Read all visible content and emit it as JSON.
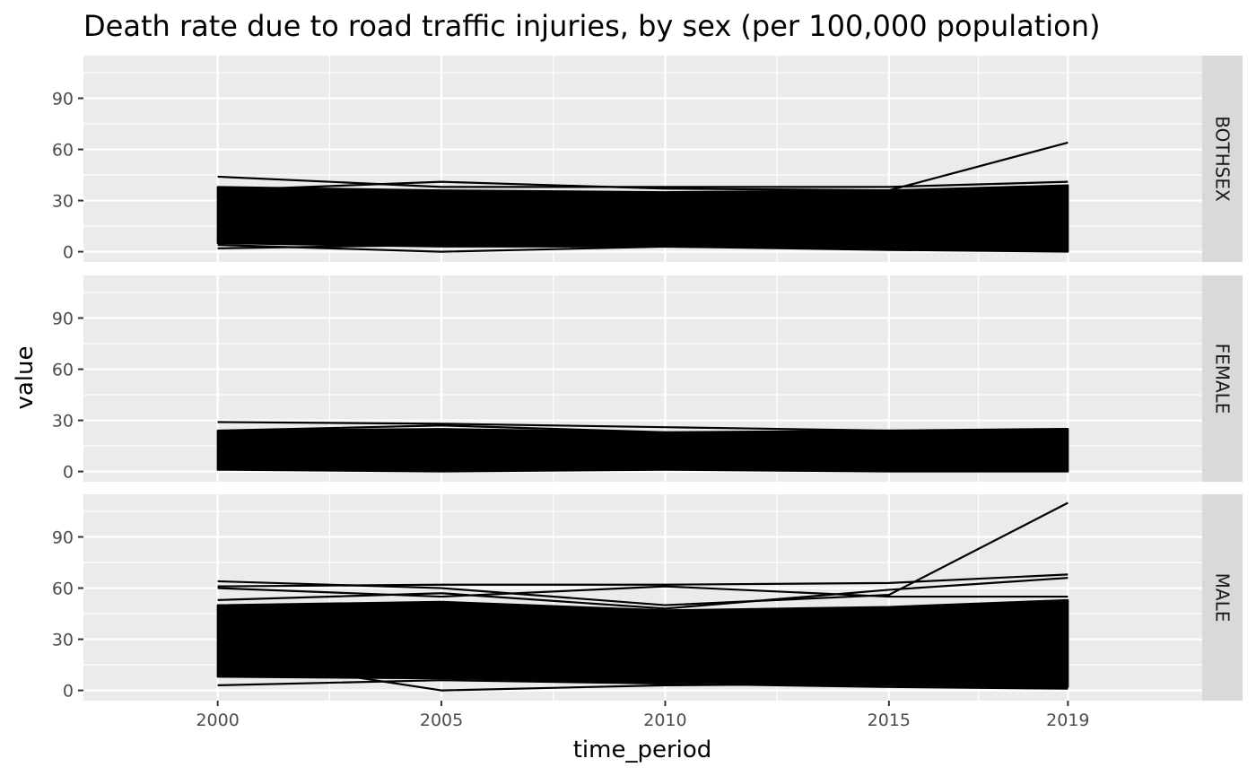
{
  "chart_data": {
    "type": "line",
    "title": "Death rate due to road traffic injuries, by sex (per 100,000 population)",
    "xlabel": "time_period",
    "ylabel": "value",
    "x_ticks": [
      2000,
      2005,
      2010,
      2015,
      2019
    ],
    "y_ticks": [
      0,
      30,
      60,
      90
    ],
    "xlim": [
      1997,
      2022
    ],
    "ylim": [
      -6,
      115
    ],
    "grid": true,
    "facets": [
      {
        "label": "BOTHSEX",
        "band_upper": [
          [
            2000,
            38
          ],
          [
            2005,
            36
          ],
          [
            2010,
            35
          ],
          [
            2015,
            36
          ],
          [
            2019,
            39
          ]
        ],
        "band_lower": [
          [
            2000,
            5
          ],
          [
            2005,
            3
          ],
          [
            2010,
            3
          ],
          [
            2015,
            1
          ],
          [
            2019,
            0
          ]
        ],
        "series": [
          {
            "x": [
              2000,
              2005,
              2010,
              2015,
              2019
            ],
            "y": [
              44,
              38,
              38,
              38,
              41
            ]
          },
          {
            "x": [
              2000,
              2005,
              2010,
              2015,
              2019
            ],
            "y": [
              36,
              41,
              37,
              36,
              64
            ]
          },
          {
            "x": [
              2000,
              2005,
              2010,
              2015,
              2019
            ],
            "y": [
              2,
              4,
              3,
              2,
              1
            ]
          },
          {
            "x": [
              2000,
              2005,
              2010,
              2015,
              2019
            ],
            "y": [
              4,
              0,
              3,
              2,
              1
            ]
          }
        ]
      },
      {
        "label": "FEMALE",
        "band_upper": [
          [
            2000,
            24
          ],
          [
            2005,
            25
          ],
          [
            2010,
            23
          ],
          [
            2015,
            23
          ],
          [
            2019,
            25
          ]
        ],
        "band_lower": [
          [
            2000,
            1
          ],
          [
            2005,
            0
          ],
          [
            2010,
            1
          ],
          [
            2015,
            0
          ],
          [
            2019,
            0
          ]
        ],
        "series": [
          {
            "x": [
              2000,
              2005,
              2010,
              2015,
              2019
            ],
            "y": [
              29,
              28,
              26,
              24,
              24
            ]
          },
          {
            "x": [
              2000,
              2005,
              2010,
              2015,
              2019
            ],
            "y": [
              24,
              27,
              23,
              24,
              25
            ]
          }
        ]
      },
      {
        "label": "MALE",
        "band_upper": [
          [
            2000,
            50
          ],
          [
            2005,
            52
          ],
          [
            2010,
            47
          ],
          [
            2015,
            49
          ],
          [
            2019,
            53
          ]
        ],
        "band_lower": [
          [
            2000,
            8
          ],
          [
            2005,
            7
          ],
          [
            2010,
            5
          ],
          [
            2015,
            3
          ],
          [
            2019,
            2
          ]
        ],
        "series": [
          {
            "x": [
              2000,
              2005,
              2010,
              2015,
              2019
            ],
            "y": [
              61,
              62,
              62,
              63,
              68
            ]
          },
          {
            "x": [
              2000,
              2005,
              2010,
              2015,
              2019
            ],
            "y": [
              64,
              60,
              50,
              56,
              110
            ]
          },
          {
            "x": [
              2000,
              2005,
              2010,
              2015,
              2019
            ],
            "y": [
              60,
              55,
              61,
              55,
              55
            ]
          },
          {
            "x": [
              2000,
              2005,
              2010,
              2015,
              2019
            ],
            "y": [
              53,
              57,
              48,
              59,
              66
            ]
          },
          {
            "x": [
              2000,
              2005,
              2010,
              2015,
              2019
            ],
            "y": [
              3,
              6,
              4,
              2,
              1
            ]
          },
          {
            "x": [
              2000,
              2005,
              2010,
              2015,
              2019
            ],
            "y": [
              20,
              0,
              3,
              4,
              2
            ]
          }
        ]
      }
    ]
  }
}
